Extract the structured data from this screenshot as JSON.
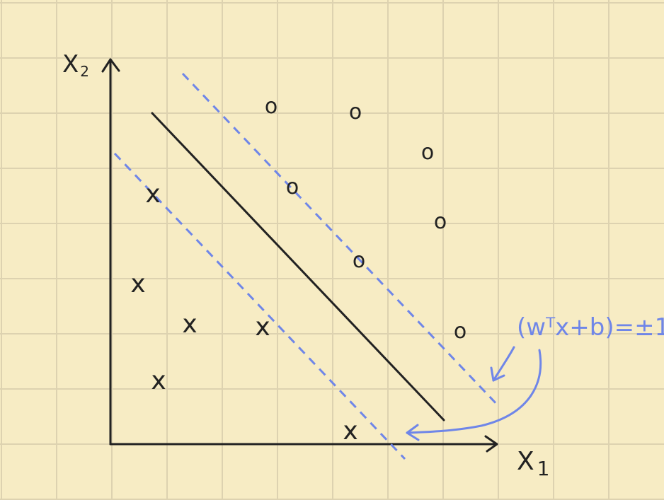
{
  "diagram": {
    "axis_x_label_main": "X",
    "axis_x_label_sub": "1",
    "axis_y_label_main": "X",
    "axis_y_label_sub": "2",
    "annotation": "(wᵀx+b)=±1",
    "negative_marker": "x",
    "positive_marker": "o",
    "colors": {
      "background": "#f7ecc4",
      "grid": "#ddd2b0",
      "ink": "#222222",
      "margin": "#6f86e8"
    }
  }
}
